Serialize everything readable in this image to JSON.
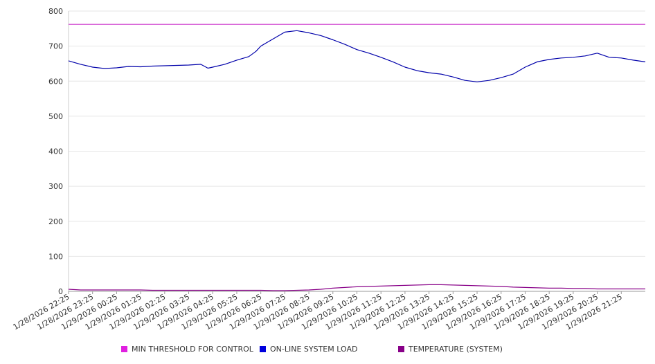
{
  "chart_data": {
    "type": "line",
    "title": "",
    "xlabel": "",
    "ylabel": "",
    "ylim": [
      0,
      800
    ],
    "yticks": [
      0,
      100,
      200,
      300,
      400,
      500,
      600,
      700,
      800
    ],
    "grid": true,
    "legend_position": "bottom",
    "x_tick_labels": [
      "1/28/2026 22:25",
      "1/28/2026 23:25",
      "1/29/2026 00:25",
      "1/29/2026 01:25",
      "1/29/2026 02:25",
      "1/29/2026 03:25",
      "1/29/2026 04:25",
      "1/29/2026 05:25",
      "1/29/2026 06:25",
      "1/29/2026 07:25",
      "1/29/2026 08:25",
      "1/29/2026 09:25",
      "1/29/2026 10:25",
      "1/29/2026 11:25",
      "1/29/2026 12:25",
      "1/29/2026 13:25",
      "1/29/2026 14:25",
      "1/29/2026 15:25",
      "1/29/2026 16:25",
      "1/29/2026 17:25",
      "1/29/2026 18:25",
      "1/29/2026 19:25",
      "1/29/2026 20:25",
      "1/29/2026 21:25"
    ],
    "x_hours": [
      0,
      0.5,
      1,
      1.5,
      2,
      2.5,
      3,
      3.5,
      4,
      4.5,
      5,
      5.5,
      5.8,
      6,
      6.5,
      7,
      7.5,
      7.8,
      8,
      8.5,
      9,
      9.5,
      10,
      10.5,
      11,
      11.5,
      12,
      12.5,
      13,
      13.5,
      14,
      14.5,
      15,
      15.5,
      16,
      16.5,
      17,
      17.5,
      18,
      18.5,
      19,
      19.5,
      20,
      20.5,
      21,
      21.5,
      22,
      22.5,
      23,
      23.5,
      24
    ],
    "series": [
      {
        "name": "MIN THRESHOLD FOR CONTROL",
        "color": "#cc33cc",
        "values": [
          762,
          762,
          762,
          762,
          762,
          762,
          762,
          762,
          762,
          762,
          762,
          762,
          762,
          762,
          762,
          762,
          762,
          762,
          762,
          762,
          762,
          762,
          762,
          762,
          762,
          762,
          762,
          762,
          762,
          762,
          762,
          762,
          762,
          762,
          762,
          762,
          762,
          762,
          762,
          762,
          762,
          762,
          762,
          762,
          762,
          762,
          762,
          762,
          762,
          762,
          762
        ]
      },
      {
        "name": "ON-LINE SYSTEM LOAD",
        "color": "#0000aa",
        "values": [
          658,
          648,
          640,
          636,
          638,
          642,
          641,
          643,
          644,
          645,
          646,
          648,
          637,
          640,
          648,
          660,
          670,
          685,
          700,
          720,
          740,
          744,
          738,
          730,
          718,
          705,
          690,
          680,
          668,
          655,
          640,
          630,
          624,
          620,
          612,
          602,
          598,
          602,
          610,
          620,
          640,
          655,
          662,
          666,
          668,
          672,
          680,
          668,
          666,
          660,
          655
        ]
      },
      {
        "name": "TEMPERATURE (SYSTEM)",
        "color": "#880088",
        "values": [
          6,
          4,
          4,
          4,
          4,
          4,
          4,
          3,
          3,
          3,
          3,
          3,
          3,
          3,
          3,
          3,
          3,
          3,
          3,
          2,
          2,
          3,
          4,
          6,
          9,
          11,
          13,
          14,
          15,
          16,
          17,
          18,
          19,
          19,
          18,
          17,
          16,
          15,
          14,
          12,
          11,
          10,
          9,
          9,
          8,
          8,
          7,
          7,
          7,
          7,
          7
        ]
      }
    ]
  },
  "legend": {
    "items": [
      {
        "label": "MIN THRESHOLD FOR CONTROL",
        "color": "#e020e0"
      },
      {
        "label": "ON-LINE SYSTEM LOAD",
        "color": "#0000dd"
      },
      {
        "label": "TEMPERATURE (SYSTEM)",
        "color": "#880088"
      }
    ]
  }
}
